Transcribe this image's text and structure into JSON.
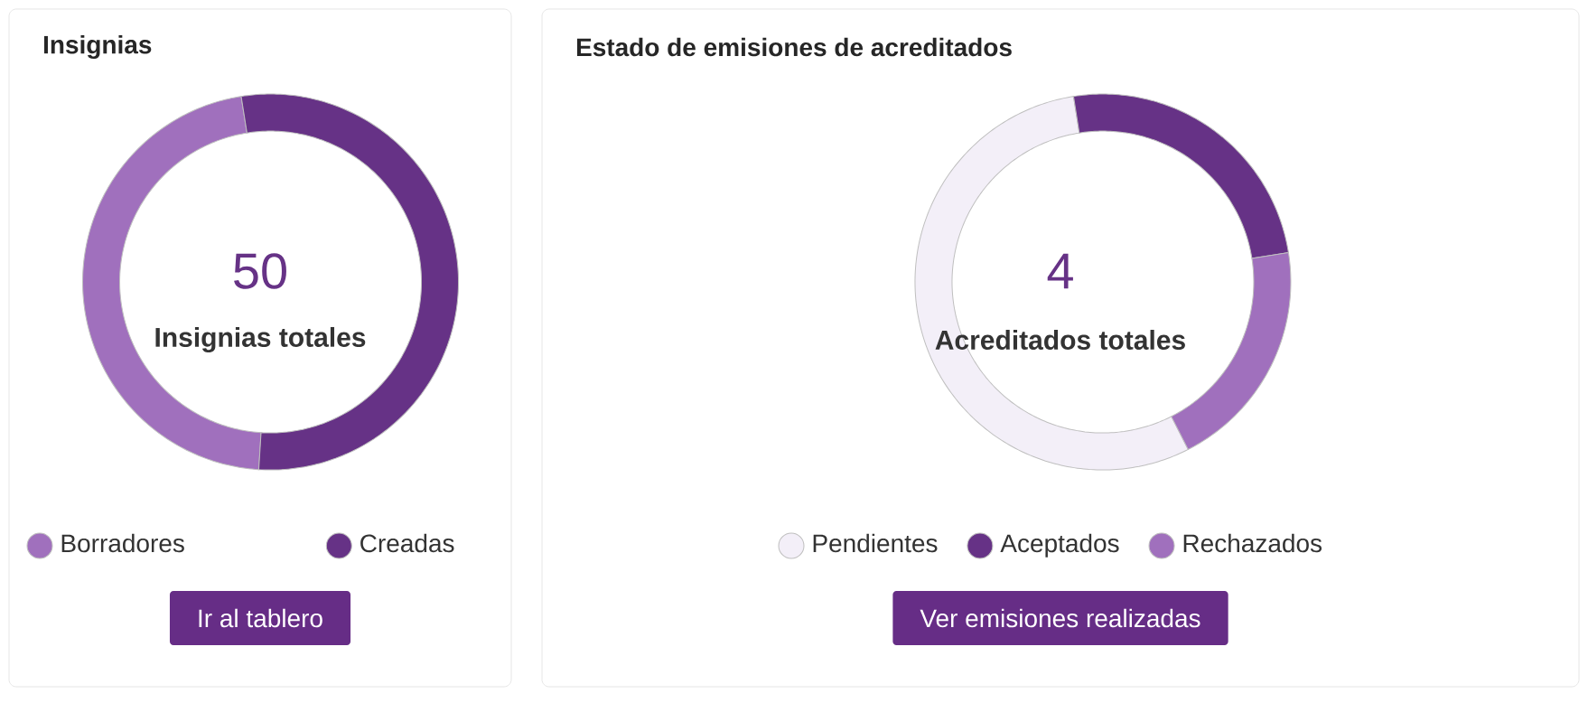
{
  "chart_data": [
    {
      "type": "donut",
      "title": "Insignias",
      "categories": [
        "Borradores",
        "Creadas"
      ],
      "values": [
        46.5,
        53.5
      ],
      "colors": [
        "#a070bd",
        "#663286"
      ],
      "legend": "bottom",
      "annotations": [
        "50",
        "Insignias totales",
        "Ir al tablero"
      ]
    },
    {
      "type": "donut",
      "title": "Estado de emisiones de acreditados",
      "categories": [
        "Pendientes",
        "Aceptados",
        "Rechazados"
      ],
      "values": [
        55,
        25,
        20
      ],
      "colors": [
        "#f3eff8",
        "#663286",
        "#a070bd"
      ],
      "legend": "bottom",
      "annotations": [
        "4",
        "Acreditados totales",
        "Ver emisiones realizadas"
      ]
    }
  ]
}
